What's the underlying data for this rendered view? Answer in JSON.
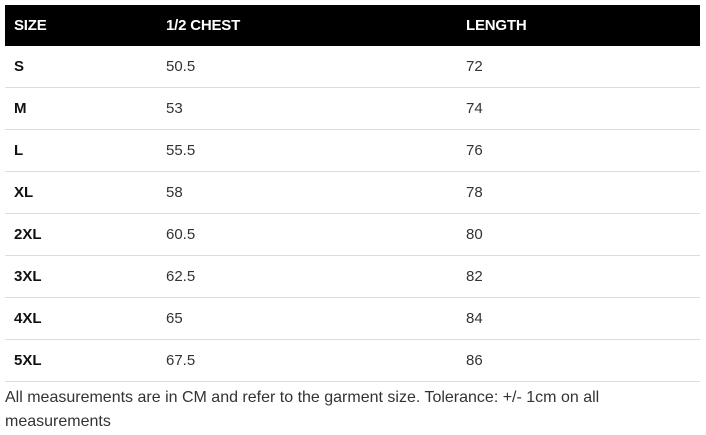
{
  "table": {
    "header": [
      "SIZE",
      "1/2 CHEST",
      "LENGTH"
    ],
    "rows": [
      [
        "S",
        "50.5",
        "72"
      ],
      [
        "M",
        "53",
        "74"
      ],
      [
        "L",
        "55.5",
        "76"
      ],
      [
        "XL",
        "58",
        "78"
      ],
      [
        "2XL",
        "60.5",
        "80"
      ],
      [
        "3XL",
        "62.5",
        "82"
      ],
      [
        "4XL",
        "65",
        "84"
      ],
      [
        "5XL",
        "67.5",
        "86"
      ]
    ]
  },
  "footnote": "All measurements are in CM and refer to the garment size. Tolerance: +/- 1cm on all measurements"
}
